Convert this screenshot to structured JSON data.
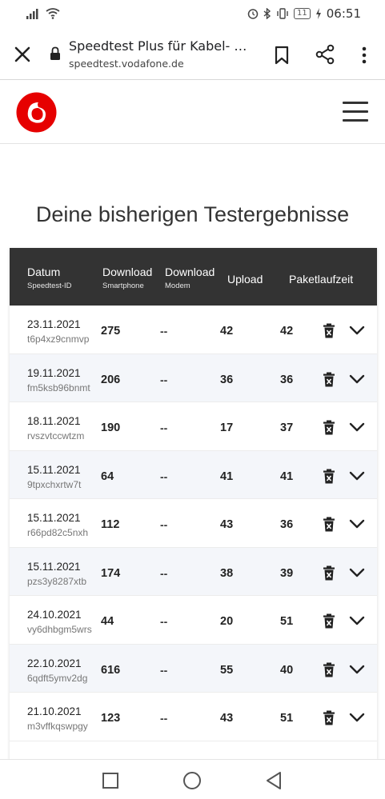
{
  "status_bar": {
    "time": "06:51",
    "battery": "11"
  },
  "browser": {
    "title": "Speedtest Plus für Kabel- und DSL-Anschlüsse",
    "url": "speedtest.vodafone.de"
  },
  "colors": {
    "brand": "#e60000",
    "header_bg": "#333333",
    "alt_row": "#f4f6fa"
  },
  "page_title": "Deine bisherigen Testergebnisse",
  "table": {
    "headers": {
      "date": "Datum",
      "date_sub": "Speedtest-ID",
      "dl_phone": "Download",
      "dl_phone_sub": "Smartphone",
      "dl_modem": "Download",
      "dl_modem_sub": "Modem",
      "upload": "Upload",
      "ping": "Paketlaufzeit"
    },
    "rows": [
      {
        "date": "23.11.2021",
        "id": "t6p4xz9cnmvp",
        "download": "275",
        "modem": "--",
        "upload": "42",
        "ping": "42"
      },
      {
        "date": "19.11.2021",
        "id": "fm5ksb96bnmt",
        "download": "206",
        "modem": "--",
        "upload": "36",
        "ping": "36"
      },
      {
        "date": "18.11.2021",
        "id": "rvszvtccwtzm",
        "download": "190",
        "modem": "--",
        "upload": "17",
        "ping": "37"
      },
      {
        "date": "15.11.2021",
        "id": "9tpxchxrtw7t",
        "download": "64",
        "modem": "--",
        "upload": "41",
        "ping": "41"
      },
      {
        "date": "15.11.2021",
        "id": "r66pd82c5nxh",
        "download": "112",
        "modem": "--",
        "upload": "43",
        "ping": "36"
      },
      {
        "date": "15.11.2021",
        "id": "pzs3y8287xtb",
        "download": "174",
        "modem": "--",
        "upload": "38",
        "ping": "39"
      },
      {
        "date": "24.10.2021",
        "id": "vy6dhbgm5wrs",
        "download": "44",
        "modem": "--",
        "upload": "20",
        "ping": "51"
      },
      {
        "date": "22.10.2021",
        "id": "6qdft5ymv2dg",
        "download": "616",
        "modem": "--",
        "upload": "55",
        "ping": "40"
      },
      {
        "date": "21.10.2021",
        "id": "m3vffkqswpgy",
        "download": "123",
        "modem": "--",
        "upload": "43",
        "ping": "51"
      }
    ]
  }
}
